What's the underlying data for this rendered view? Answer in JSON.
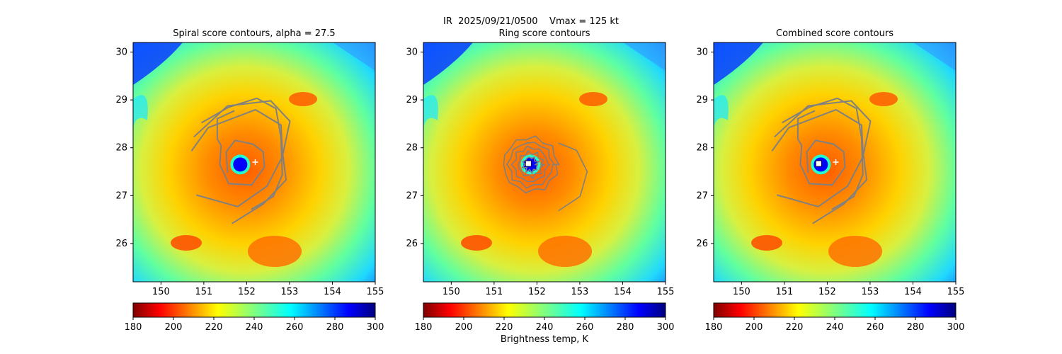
{
  "figure": {
    "suptitle_line1": "IR  2025/09/21/0500    Vmax = 125 kt",
    "colorbar_label": "Brightness temp, K",
    "colormap": "jet_r",
    "colors": {
      "contour": "#808080",
      "marker": "#ffffff"
    }
  },
  "chart_data": [
    {
      "type": "heatmap",
      "title": "Spiral score contours, alpha = 27.5",
      "xlim": [
        149.35,
        155.0
      ],
      "ylim": [
        25.2,
        30.2
      ],
      "xticks": [
        150,
        151,
        152,
        153,
        154,
        155
      ],
      "yticks": [
        26,
        27,
        28,
        29,
        30
      ],
      "colorbar": {
        "range": [
          180,
          300
        ],
        "ticks": [
          180,
          200,
          220,
          240,
          260,
          280,
          300
        ],
        "label": ""
      },
      "storm_center": {
        "lon": 151.85,
        "lat": 27.65
      },
      "markers": [
        {
          "symbol": "+",
          "lon": 152.2,
          "lat": 27.7
        }
      ],
      "contour_style": "spiral"
    },
    {
      "type": "heatmap",
      "title": "Ring score contours",
      "xlim": [
        149.35,
        155.0
      ],
      "ylim": [
        25.2,
        30.2
      ],
      "xticks": [
        150,
        151,
        152,
        153,
        154,
        155
      ],
      "yticks": [
        26,
        27,
        28,
        29,
        30
      ],
      "colorbar": {
        "range": [
          180,
          300
        ],
        "ticks": [
          180,
          200,
          220,
          240,
          260,
          280,
          300
        ],
        "label": "Brightness temp, K"
      },
      "storm_center": {
        "lon": 151.85,
        "lat": 27.65
      },
      "markers": [
        {
          "symbol": "square",
          "lon": 151.8,
          "lat": 27.67
        }
      ],
      "contour_style": "ring"
    },
    {
      "type": "heatmap",
      "title": "Combined score contours",
      "xlim": [
        149.35,
        155.0
      ],
      "ylim": [
        25.2,
        30.2
      ],
      "xticks": [
        150,
        151,
        152,
        153,
        154,
        155
      ],
      "yticks": [
        26,
        27,
        28,
        29,
        30
      ],
      "colorbar": {
        "range": [
          180,
          300
        ],
        "ticks": [
          180,
          200,
          220,
          240,
          260,
          280,
          300
        ],
        "label": ""
      },
      "storm_center": {
        "lon": 151.85,
        "lat": 27.65
      },
      "markers": [
        {
          "symbol": "square",
          "lon": 151.8,
          "lat": 27.67
        },
        {
          "symbol": "+",
          "lon": 152.2,
          "lat": 27.7
        }
      ],
      "contour_style": "spiral"
    }
  ]
}
